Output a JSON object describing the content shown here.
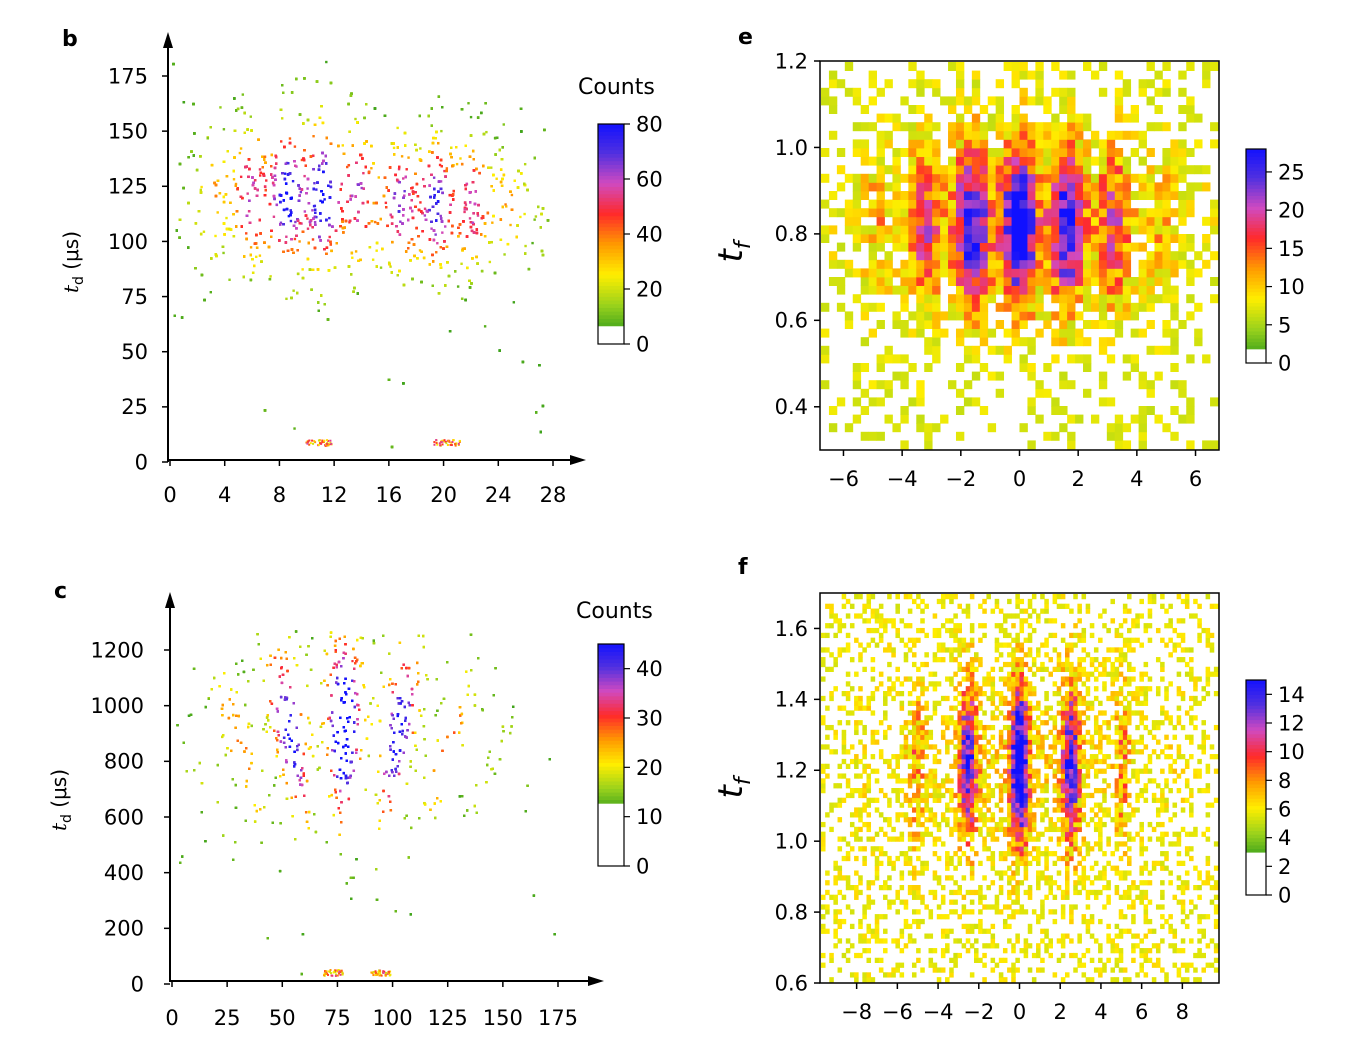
{
  "chart_data": [
    {
      "panel": "b",
      "type": "heatmap",
      "ylabel": "t_d (μs)",
      "ylabel_main": "t",
      "ylabel_sub": "d",
      "ylabel_unit": "(μs)",
      "xlim": [
        0,
        28
      ],
      "ylim": [
        0,
        175
      ],
      "xticks": [
        "0",
        "4",
        "8",
        "12",
        "16",
        "20",
        "24",
        "28"
      ],
      "yticks": [
        "0",
        "25",
        "50",
        "75",
        "100",
        "125",
        "150",
        "175"
      ],
      "colorbar": {
        "label": "Counts",
        "range": [
          0,
          80
        ],
        "ticks": [
          "0",
          "20",
          "40",
          "60",
          "80"
        ]
      },
      "grid": false
    },
    {
      "panel": "c",
      "type": "heatmap",
      "ylabel": "t_d (μs)",
      "ylabel_main": "t",
      "ylabel_sub": "d",
      "ylabel_unit": "(μs)",
      "xlim": [
        0,
        175
      ],
      "ylim": [
        0,
        1200
      ],
      "xticks": [
        "0",
        "25",
        "50",
        "75",
        "100",
        "125",
        "150",
        "175"
      ],
      "yticks": [
        "0",
        "200",
        "400",
        "600",
        "800",
        "1000",
        "1200"
      ],
      "colorbar": {
        "label": "Counts",
        "range": [
          0,
          45
        ],
        "ticks": [
          "0",
          "10",
          "20",
          "30",
          "40"
        ]
      },
      "grid": false
    },
    {
      "panel": "e",
      "type": "heatmap",
      "ylabel": "t_f",
      "ylabel_main": "t",
      "ylabel_sub": "f",
      "xlim": [
        -6.8,
        6.8
      ],
      "ylim": [
        0.3,
        1.2
      ],
      "xticks": [
        "−6",
        "−4",
        "−2",
        "0",
        "2",
        "4",
        "6"
      ],
      "yticks": [
        "0.4",
        "0.6",
        "0.8",
        "1.0",
        "1.2"
      ],
      "colorbar": {
        "range": [
          0,
          28
        ],
        "ticks": [
          "0",
          "5",
          "10",
          "15",
          "20",
          "25"
        ]
      },
      "grid": false
    },
    {
      "panel": "f",
      "type": "heatmap",
      "ylabel": "t_f",
      "ylabel_main": "t",
      "ylabel_sub": "f",
      "xlim": [
        -9.8,
        9.8
      ],
      "ylim": [
        0.6,
        1.7
      ],
      "xticks": [
        "−8",
        "−6",
        "−4",
        "−2",
        "0",
        "2",
        "4",
        "6",
        "8"
      ],
      "yticks": [
        "0.6",
        "0.8",
        "1.0",
        "1.2",
        "1.4",
        "1.6"
      ],
      "colorbar": {
        "range": [
          0,
          15
        ],
        "ticks": [
          "0",
          "2",
          "4",
          "6",
          "8",
          "10",
          "12",
          "14"
        ]
      },
      "grid": false
    }
  ],
  "colormap": [
    "#ffffff",
    "#2e9a1c",
    "#9ad21c",
    "#ffee00",
    "#ff9a00",
    "#ff2a2a",
    "#d04ac0",
    "#5030e0",
    "#1010ff"
  ]
}
